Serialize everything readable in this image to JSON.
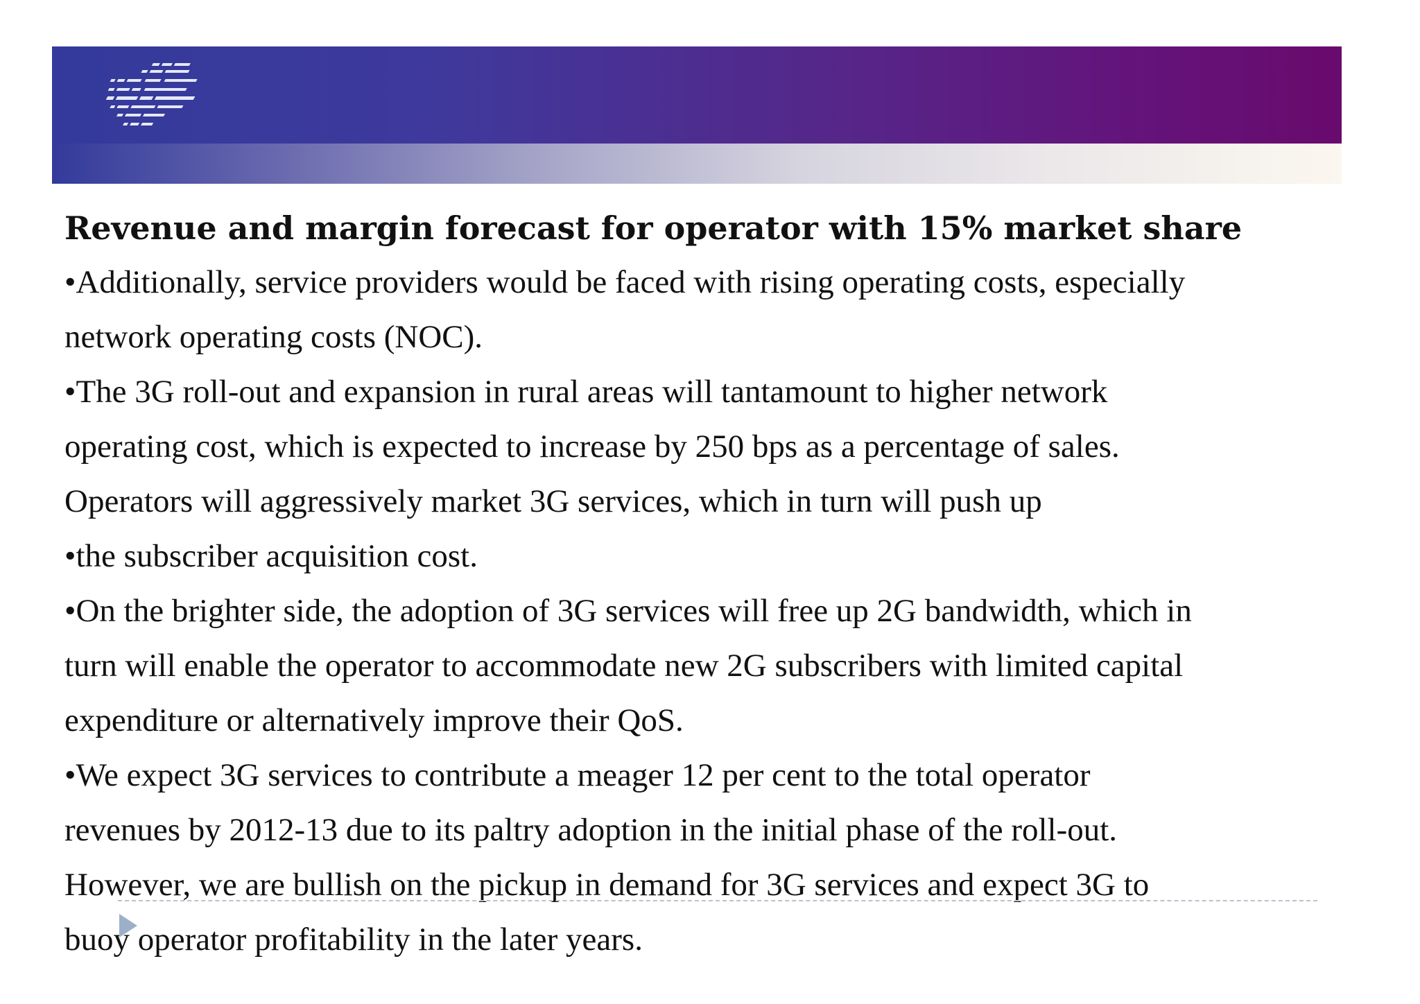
{
  "slide": {
    "title": "Revenue and margin forecast for operator with 15% market share",
    "lines": [
      "•Additionally, service providers would be faced with rising operating costs, especially",
      "network operating costs (NOC).",
      "•The 3G roll-out and expansion in rural areas will tantamount to higher network",
      "operating cost, which is expected to increase by 250 bps as a percentage of sales.",
      "Operators will aggressively market 3G services, which in turn will push up",
      "•the subscriber acquisition cost.",
      "•On the brighter side, the adoption of 3G services will free up 2G bandwidth, which in",
      "turn will enable the operator to accommodate new 2G subscribers with limited capital",
      "expenditure or alternatively improve their QoS.",
      "•We expect 3G services to contribute a meager 12 per cent to the total operator",
      "revenues by 2012-13 due to its paltry adoption in the initial phase of the roll-out.",
      "However, we are bullish on the pickup in demand for 3G services and expect 3G to",
      "buoy operator profitability in the later years."
    ]
  },
  "icons": {
    "logo": "striped-logo-icon",
    "play": "play-arrow-icon"
  },
  "colors": {
    "banner_left": "#333a9b",
    "banner_right": "#690a6d",
    "text": "#111111"
  }
}
